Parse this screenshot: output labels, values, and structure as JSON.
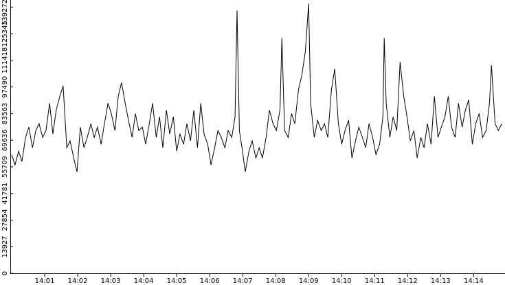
{
  "chart_data": {
    "type": "line",
    "color": "#000000",
    "x": [
      0,
      0.1,
      0.21,
      0.31,
      0.42,
      0.52,
      0.63,
      0.73,
      0.83,
      0.94,
      1.04,
      1.15,
      1.25,
      1.35,
      1.46,
      1.56,
      1.67,
      1.77,
      1.88,
      1.98,
      2.08,
      2.19,
      2.29,
      2.4,
      2.5,
      2.6,
      2.71,
      2.81,
      2.92,
      3.02,
      3.13,
      3.23,
      3.33,
      3.44,
      3.54,
      3.65,
      3.75,
      3.85,
      3.96,
      4.06,
      4.17,
      4.27,
      4.38,
      4.48,
      4.58,
      4.69,
      4.79,
      4.9,
      5.0,
      5.1,
      5.21,
      5.31,
      5.42,
      5.52,
      5.63,
      5.73,
      5.83,
      5.94,
      6.04,
      6.15,
      6.25,
      6.35,
      6.46,
      6.56,
      6.67,
      6.77,
      6.83,
      6.9,
      6.98,
      7.08,
      7.19,
      7.29,
      7.4,
      7.5,
      7.6,
      7.71,
      7.81,
      7.92,
      8.02,
      8.13,
      8.19,
      8.27,
      8.38,
      8.48,
      8.58,
      8.69,
      8.79,
      8.9,
      9.0,
      9.06,
      9.17,
      9.27,
      9.38,
      9.48,
      9.58,
      9.69,
      9.79,
      9.9,
      10.0,
      10.1,
      10.21,
      10.31,
      10.42,
      10.52,
      10.63,
      10.73,
      10.83,
      10.94,
      11.04,
      11.15,
      11.25,
      11.29,
      11.35,
      11.46,
      11.56,
      11.67,
      11.77,
      11.88,
      11.98,
      12.08,
      12.19,
      12.29,
      12.4,
      12.5,
      12.6,
      12.71,
      12.81,
      12.92,
      13.02,
      13.13,
      13.23,
      13.33,
      13.44,
      13.54,
      13.65,
      13.75,
      13.85,
      13.96,
      14.06,
      14.17,
      14.27,
      14.38,
      14.48,
      14.54,
      14.65,
      14.75,
      14.85
    ],
    "values": [
      62100,
      56700,
      63900,
      58500,
      71100,
      76500,
      65700,
      74700,
      78300,
      71100,
      74700,
      89000,
      72900,
      85400,
      92600,
      98000,
      65700,
      69300,
      60300,
      53100,
      76500,
      65700,
      71100,
      78300,
      71100,
      76500,
      67500,
      78300,
      89000,
      83600,
      74700,
      92600,
      99800,
      89000,
      80100,
      71100,
      83600,
      74700,
      76500,
      67500,
      78300,
      89000,
      71100,
      81900,
      65700,
      85400,
      72900,
      81900,
      63900,
      72900,
      67500,
      78300,
      69300,
      85400,
      65700,
      89000,
      72900,
      67500,
      56700,
      65700,
      74700,
      71100,
      65700,
      74700,
      71100,
      81900,
      137500,
      74700,
      65700,
      53100,
      63900,
      69300,
      60300,
      65700,
      60300,
      71100,
      85400,
      78300,
      74700,
      85400,
      123100,
      74700,
      71100,
      83600,
      78300,
      96200,
      103400,
      116000,
      141100,
      89000,
      71100,
      80100,
      74700,
      78300,
      71100,
      96200,
      107000,
      78300,
      67500,
      74700,
      80100,
      60300,
      69300,
      76500,
      71100,
      65700,
      78300,
      71100,
      62100,
      67500,
      81900,
      123100,
      89000,
      71100,
      81900,
      74700,
      110600,
      92600,
      81900,
      69300,
      74700,
      60300,
      71100,
      65700,
      78300,
      67500,
      92600,
      71100,
      76500,
      81900,
      92600,
      76500,
      71100,
      89000,
      76500,
      85400,
      90800,
      67500,
      78300,
      83600,
      71100,
      74700,
      89000,
      108800,
      78300,
      74700,
      78300
    ],
    "xlim": [
      0,
      14.95
    ],
    "xticks": [
      {
        "value": 1,
        "label": "14:01"
      },
      {
        "value": 2,
        "label": "14:02"
      },
      {
        "value": 3,
        "label": "14:03"
      },
      {
        "value": 4,
        "label": "14:04"
      },
      {
        "value": 5,
        "label": "14:05"
      },
      {
        "value": 6,
        "label": "14:06"
      },
      {
        "value": 7,
        "label": "14:07"
      },
      {
        "value": 8,
        "label": "14:08"
      },
      {
        "value": 9,
        "label": "14:09"
      },
      {
        "value": 10,
        "label": "14:10"
      },
      {
        "value": 11,
        "label": "14:11"
      },
      {
        "value": 12,
        "label": "14:12"
      },
      {
        "value": 13,
        "label": "14:13"
      },
      {
        "value": 14,
        "label": "14:14"
      }
    ],
    "ylim": [
      0,
      143000
    ],
    "yticks": [
      0,
      13927,
      27854,
      41781,
      55709,
      69636,
      83563,
      97490,
      111418,
      125345,
      139272
    ]
  }
}
